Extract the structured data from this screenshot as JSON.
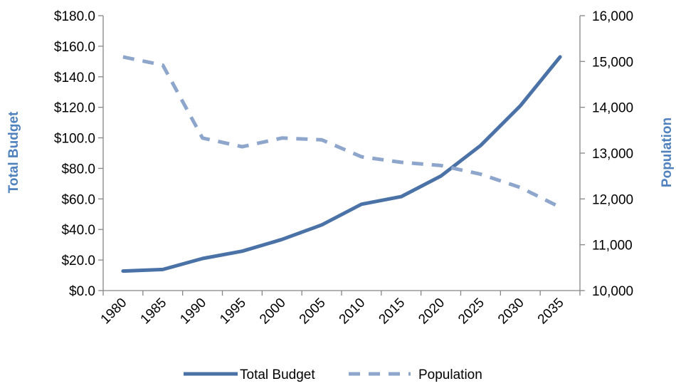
{
  "chart_data": {
    "type": "line",
    "categories": [
      "1980",
      "1985",
      "1990",
      "1995",
      "2000",
      "2005",
      "2010",
      "2015",
      "2020",
      "2025",
      "2030",
      "2035"
    ],
    "series": [
      {
        "name": "Total Budget",
        "axis": "left",
        "style": "solid",
        "color": "#4a72a6",
        "values": [
          12.8,
          13.8,
          21.0,
          25.8,
          33.5,
          43.0,
          56.5,
          61.5,
          75.0,
          95.0,
          121.0,
          153.0
        ]
      },
      {
        "name": "Population",
        "axis": "right",
        "style": "dashed",
        "color": "#8ea6cc",
        "values": [
          15100,
          14920,
          13330,
          13140,
          13330,
          13290,
          12920,
          12800,
          12730,
          12540,
          12250,
          11820
        ]
      }
    ],
    "y_left": {
      "label": "Total Budget",
      "range": [
        0,
        180
      ],
      "ticks": [
        "$0.0",
        "$20.0",
        "$40.0",
        "$60.0",
        "$80.0",
        "$100.0",
        "$120.0",
        "$140.0",
        "$160.0",
        "$180.0"
      ]
    },
    "y_right": {
      "label": "Population",
      "range": [
        10000,
        16000
      ],
      "ticks": [
        "10,000",
        "11,000",
        "12,000",
        "13,000",
        "14,000",
        "15,000",
        "16,000"
      ]
    },
    "axis_title_color": "#4f81bd",
    "grid": false,
    "legend_position": "bottom",
    "title": "",
    "xlabel": ""
  }
}
